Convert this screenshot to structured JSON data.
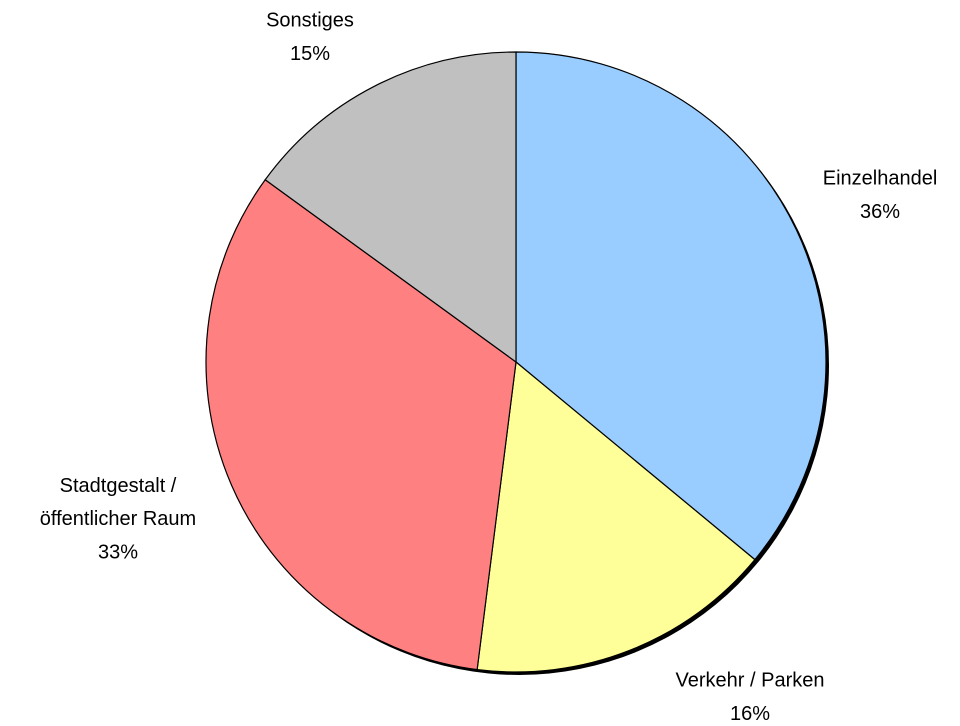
{
  "chart_data": {
    "type": "pie",
    "categories": [
      "Einzelhandel",
      "Verkehr / Parken",
      "Stadtgestalt / öffentlicher Raum",
      "Sonstiges"
    ],
    "values": [
      36,
      16,
      33,
      15
    ],
    "value_labels": [
      "36%",
      "16%",
      "33%",
      "15%"
    ],
    "colors": [
      "#99ccff",
      "#ffff99",
      "#ff8080",
      "#c0c0c0"
    ]
  }
}
